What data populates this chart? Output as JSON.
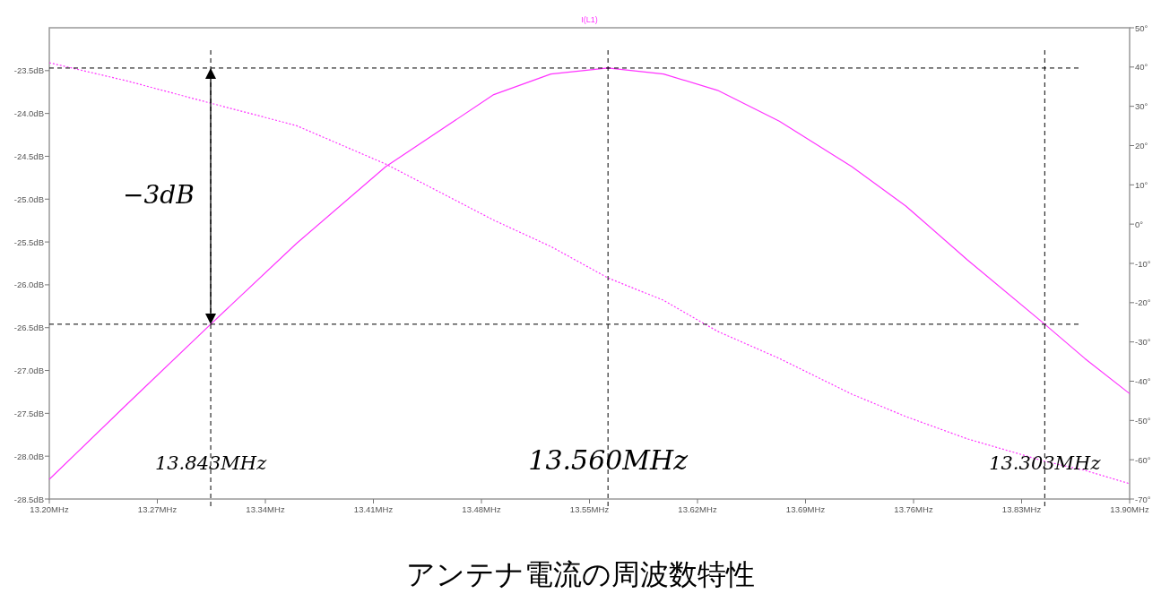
{
  "chart_data": {
    "type": "line",
    "title": "アンテナ電流の周波数特性",
    "legend": "top",
    "x": [
      13.2,
      13.25,
      13.3046,
      13.36,
      13.418,
      13.488,
      13.525,
      13.562,
      13.598,
      13.633,
      13.673,
      13.72,
      13.755,
      13.795,
      13.845,
      13.871,
      13.9
    ],
    "xlim": [
      13.2,
      13.9
    ],
    "xticks": [
      {
        "value": 13.2,
        "label": "13.20MHz"
      },
      {
        "value": 13.27,
        "label": "13.27MHz"
      },
      {
        "value": 13.34,
        "label": "13.34MHz"
      },
      {
        "value": 13.41,
        "label": "13.41MHz"
      },
      {
        "value": 13.48,
        "label": "13.48MHz"
      },
      {
        "value": 13.55,
        "label": "13.55MHz"
      },
      {
        "value": 13.62,
        "label": "13.62MHz"
      },
      {
        "value": 13.69,
        "label": "13.69MHz"
      },
      {
        "value": 13.76,
        "label": "13.76MHz"
      },
      {
        "value": 13.83,
        "label": "13.83MHz"
      },
      {
        "value": 13.9,
        "label": "13.90MHz"
      }
    ],
    "ylim": [
      -28.5,
      -23.0
    ],
    "yticks": [
      {
        "value": -23.5,
        "label": "-23.5dB"
      },
      {
        "value": -24.0,
        "label": "-24.0dB"
      },
      {
        "value": -24.5,
        "label": "-24.5dB"
      },
      {
        "value": -25.0,
        "label": "-25.0dB"
      },
      {
        "value": -25.5,
        "label": "-25.5dB"
      },
      {
        "value": -26.0,
        "label": "-26.0dB"
      },
      {
        "value": -26.5,
        "label": "-26.5dB"
      },
      {
        "value": -27.0,
        "label": "-27.0dB"
      },
      {
        "value": -27.5,
        "label": "-27.5dB"
      },
      {
        "value": -28.0,
        "label": "-28.0dB"
      },
      {
        "value": -28.5,
        "label": "-28.5dB"
      }
    ],
    "y2lim": [
      -70,
      50
    ],
    "y2ticks": [
      {
        "value": 50,
        "label": "50°"
      },
      {
        "value": 40,
        "label": "40°"
      },
      {
        "value": 30,
        "label": "30°"
      },
      {
        "value": 20,
        "label": "20°"
      },
      {
        "value": 10,
        "label": "10°"
      },
      {
        "value": 0,
        "label": "0°"
      },
      {
        "value": -10,
        "label": "-10°"
      },
      {
        "value": -20,
        "label": "-20°"
      },
      {
        "value": -30,
        "label": "-30°"
      },
      {
        "value": -40,
        "label": "-40°"
      },
      {
        "value": -50,
        "label": "-50°"
      },
      {
        "value": -60,
        "label": "-60°"
      },
      {
        "value": -70,
        "label": "-70°"
      }
    ],
    "series": [
      {
        "name": "I(L1)",
        "color": "#ff33ff",
        "line_style": "solid",
        "values": [
          -28.27,
          -27.4,
          -26.46,
          -25.52,
          -24.62,
          -23.78,
          -23.54,
          -23.47,
          -23.54,
          -23.73,
          -24.09,
          -24.62,
          -25.08,
          -25.71,
          -26.46,
          -26.86,
          -27.27
        ]
      },
      {
        "color": "#ff33ff",
        "line_style": "dotted",
        "axis": "y2",
        "values": [
          41.1,
          36.5,
          30.8,
          25.1,
          15.3,
          1.0,
          -5.7,
          -13.7,
          -19.4,
          -27.3,
          -34.2,
          -43.3,
          -49.0,
          -54.7,
          -60.4,
          -62.7,
          -66.1
        ]
      }
    ],
    "ref_lines": [
      {
        "axis": "y",
        "value": -23.47,
        "color": "#000000",
        "line_style": "dashed"
      },
      {
        "axis": "y",
        "value": -26.46,
        "color": "#000000",
        "line_style": "dashed"
      },
      {
        "axis": "x",
        "value": 13.3046,
        "color": "#000000",
        "line_style": "dashed"
      },
      {
        "axis": "x",
        "value": 13.562,
        "color": "#000000",
        "line_style": "dashed"
      },
      {
        "axis": "x",
        "value": 13.845,
        "color": "#000000",
        "line_style": "dashed"
      }
    ],
    "annotations": [
      "−3dB",
      {
        "text": "13.843MHz",
        "x": 13.3046,
        "y": -28.15
      },
      {
        "text": "13.560MHz",
        "x": 13.562,
        "y": -28.15
      },
      {
        "text": "13.303MHz",
        "x": 13.845,
        "y": -28.15
      }
    ]
  }
}
